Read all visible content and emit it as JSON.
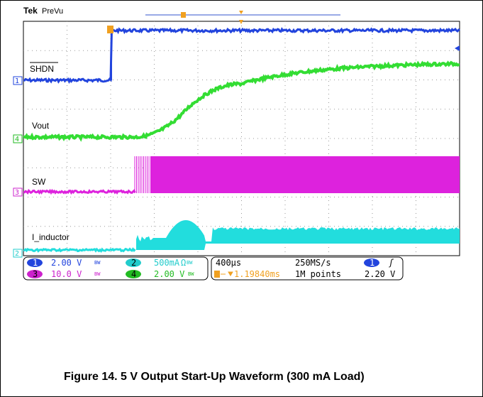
{
  "header": {
    "brand": "Tek",
    "mode": "PreVu"
  },
  "traces": [
    {
      "channel": "1",
      "label": "SHDN"
    },
    {
      "channel": "4",
      "label": "Vout"
    },
    {
      "channel": "3",
      "label": "SW"
    },
    {
      "channel": "2",
      "label": "I_inductor"
    }
  ],
  "readouts": {
    "ch1": {
      "channel": "1",
      "scale": "2.00 V",
      "bw": "BW"
    },
    "ch2": {
      "channel": "2",
      "scale": "500mA",
      "impedance": "Ω",
      "bw": "BW"
    },
    "ch3": {
      "channel": "3",
      "scale": "10.0 V",
      "bw": "BW"
    },
    "ch4": {
      "channel": "4",
      "scale": "2.00 V",
      "bw": "BW"
    },
    "horizontal": {
      "time_per_div": "400µs",
      "sample_rate": "250MS/s",
      "trigger_position": "1.19840ms",
      "record_length": "1M points"
    },
    "trigger": {
      "source": "1",
      "slope": "ʃ",
      "level": "2.20 V"
    }
  },
  "caption": "Figure 14. 5 V Output Start-Up Waveform (300 mA Load)"
}
